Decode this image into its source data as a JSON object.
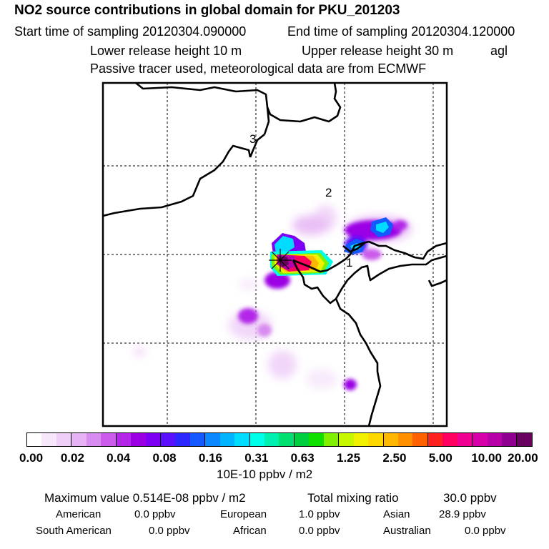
{
  "title": "NO2 source contributions in global domain for PKU_201203",
  "header": {
    "start_label": "Start time of sampling 20120304.090000",
    "end_label": "End time of sampling 20120304.120000",
    "lower_label": "Lower release height   10 m",
    "upper_label": "Upper release height   30 m",
    "agl": "agl",
    "tracer_note": "Passive tracer used, meteorological data are from ECMWF"
  },
  "map": {
    "region_labels": [
      "3",
      "2",
      "1"
    ]
  },
  "colorbar": {
    "colors": [
      "#ffffff",
      "#f6e7fb",
      "#efcff8",
      "#e6b4f4",
      "#d88cf0",
      "#cb5cec",
      "#b328e8",
      "#9b00e4",
      "#7c00f4",
      "#5a10fc",
      "#2a28fc",
      "#1458ff",
      "#0a88ff",
      "#00b4ff",
      "#00dcff",
      "#00ffe8",
      "#00f0b0",
      "#00e070",
      "#00d040",
      "#10e000",
      "#80f000",
      "#c8f800",
      "#f0f000",
      "#ffd800",
      "#ffb800",
      "#ff9000",
      "#ff6000",
      "#ff2020",
      "#ff0060",
      "#f00090",
      "#d800a8",
      "#b800a8",
      "#900090",
      "#680060"
    ],
    "ticks": [
      "0.00",
      "0.02",
      "0.04",
      "0.08",
      "0.16",
      "0.31",
      "0.63",
      "1.25",
      "2.50",
      "5.00",
      "10.00",
      "20.00"
    ],
    "units": "10E-10 ppbv / m2"
  },
  "summary": {
    "max_label": "Maximum value  0.514E-08 ppbv / m2",
    "total_label": "Total mixing ratio",
    "total_value": "30.0 ppbv",
    "american_label": "American",
    "american_value": "0.0 ppbv",
    "european_label": "European",
    "european_value": "1.0 ppbv",
    "asian_label": "Asian",
    "asian_value": "28.9 ppbv",
    "southam_label": "South American",
    "southam_value": "0.0 ppbv",
    "african_label": "African",
    "african_value": "0.0 ppbv",
    "australian_label": "Australian",
    "australian_value": "0.0 ppbv"
  }
}
